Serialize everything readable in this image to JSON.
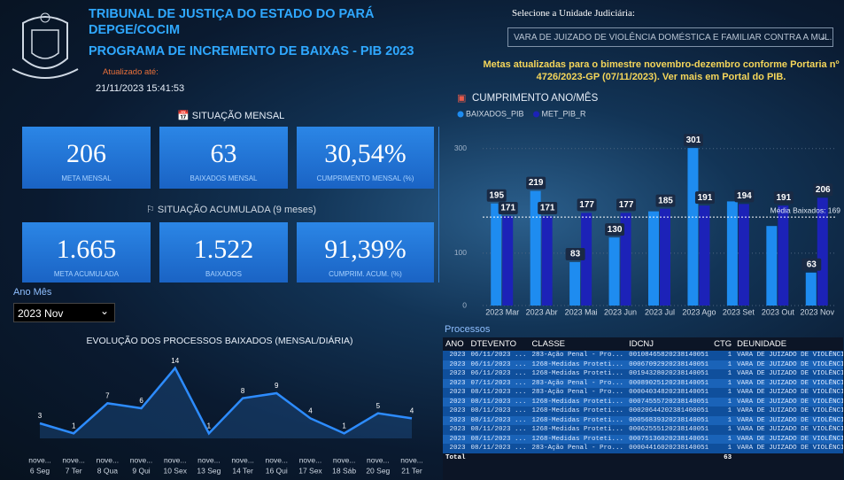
{
  "header": {
    "title": "TRIBUNAL DE JUSTIÇA DO ESTADO DO PARÁ",
    "subtitle": "DEPGE/COCIM",
    "program": "PROGRAMA DE INCREMENTO DE BAIXAS - PIB 2023",
    "updated_label": "Atualizado até:",
    "updated_at": "21/11/2023 15:41:53"
  },
  "unit_selector": {
    "label": "Selecione a Unidade Judiciária:",
    "value": "VARA DE JUIZADO DE VIOLÊNCIA DOMÉSTICA E FAMILIAR CONTRA A MUL..."
  },
  "notice": {
    "text": "Metas atualizadas para o bimestre novembro-dezembro conforme Portaria nº 4726/2023-GP (07/11/2023). Ver mais em ",
    "link": "Portal do PIB",
    "suffix": "."
  },
  "monthly": {
    "title": "SITUAÇÃO MENSAL",
    "cards": [
      {
        "value": "206",
        "label": "META MENSAL"
      },
      {
        "value": "63",
        "label": "BAIXADOS MENSAL"
      },
      {
        "value": "30,54%",
        "label": "CUMPRIMENTO MENSAL (%)"
      }
    ]
  },
  "accumulated": {
    "title": "SITUAÇÃO ACUMULADA (9 meses)",
    "cards": [
      {
        "value": "1.665",
        "label": "META ACUMULADA"
      },
      {
        "value": "1.522",
        "label": "BAIXADOS"
      },
      {
        "value": "91,39%",
        "label": "CUMPRIM. ACUM. (%)"
      }
    ]
  },
  "period_filter": {
    "label": "Ano Mês",
    "value": "2023 Nov"
  },
  "chart_data": [
    {
      "type": "bar",
      "title": "CUMPRIMENTO ANO/MÊS",
      "categories": [
        "2023 Mar",
        "2023 Abr",
        "2023 Mai",
        "2023 Jun",
        "2023 Jul",
        "2023 Ago",
        "2023 Set",
        "2023 Out",
        "2023 Nov"
      ],
      "series": [
        {
          "name": "BAIXADOS_PIB",
          "color": "#1e8cf0",
          "values": [
            195,
            219,
            83,
            130,
            180,
            301,
            199,
            152,
            63
          ],
          "value_labels": [
            "195",
            "219",
            "83",
            "130",
            null,
            "301",
            null,
            null,
            "63"
          ]
        },
        {
          "name": "MET_PIB_R",
          "color": "#1c22b8",
          "values": [
            171,
            171,
            177,
            177,
            185,
            191,
            194,
            191,
            206
          ],
          "value_labels": [
            "171",
            "171",
            "177",
            "177",
            "185",
            "191",
            "194",
            "191",
            "206"
          ]
        }
      ],
      "ylim": [
        0,
        330
      ],
      "yticks": [
        0,
        100,
        300
      ],
      "reference_line": {
        "label": "Média Baixados: 169",
        "value": 169
      }
    },
    {
      "type": "line",
      "title": "EVOLUÇÃO DOS PROCESSOS BAIXADOS (MENSAL/DIÁRIA)",
      "color": "#2d8cff",
      "categories": [
        [
          "nove...",
          "6 Seg"
        ],
        [
          "nove...",
          "7 Ter"
        ],
        [
          "nove...",
          "8 Qua"
        ],
        [
          "nove...",
          "9 Qui"
        ],
        [
          "nove...",
          "10 Sex"
        ],
        [
          "nove...",
          "13 Seg"
        ],
        [
          "nove...",
          "14 Ter"
        ],
        [
          "nove...",
          "16 Qui"
        ],
        [
          "nove...",
          "17 Sex"
        ],
        [
          "nove...",
          "18 Sáb"
        ],
        [
          "nove...",
          "20 Seg"
        ],
        [
          "nove...",
          "21 Ter"
        ]
      ],
      "values": [
        3,
        1,
        7,
        6,
        14,
        1,
        8,
        9,
        4,
        1,
        5,
        4
      ],
      "ylim": [
        0,
        15
      ]
    }
  ],
  "table": {
    "title": "Processos",
    "columns": [
      "ANO",
      "DTEVENTO",
      "CLASSE",
      "IDCNJ",
      "CTG",
      "DEUNIDADE"
    ],
    "rows": [
      [
        "2023",
        "06/11/2023 ...",
        "283-Ação Penal - Pro...",
        "00108465820238140051",
        "1",
        "VARA DE JUIZADO DE VIOLÊNCIA"
      ],
      [
        "2023",
        "06/11/2023 ...",
        "1268-Medidas Proteti...",
        "00067092920238140051",
        "1",
        "VARA DE JUIZADO DE VIOLÊNCIA"
      ],
      [
        "2023",
        "06/11/2023 ...",
        "1268-Medidas Proteti...",
        "00194328020238140051",
        "1",
        "VARA DE JUIZADO DE VIOLÊNCIA"
      ],
      [
        "2023",
        "07/11/2023 ...",
        "283-Ação Penal - Pro...",
        "00089025120238140051",
        "1",
        "VARA DE JUIZADO DE VIOLÊNCIA"
      ],
      [
        "2023",
        "08/11/2023 ...",
        "283-Ação Penal - Pro...",
        "00004034820238140051",
        "1",
        "VARA DE JUIZADO DE VIOLÊNCIA"
      ],
      [
        "2023",
        "08/11/2023 ...",
        "1268-Medidas Proteti...",
        "00074555720238140051",
        "1",
        "VARA DE JUIZADO DE VIOLÊNCIA"
      ],
      [
        "2023",
        "08/11/2023 ...",
        "1268-Medidas Proteti...",
        "00020644202381400051",
        "1",
        "VARA DE JUIZADO DE VIOLÊNCIA"
      ],
      [
        "2023",
        "08/11/2023 ...",
        "1268-Medidas Proteti...",
        "00056839320238140051",
        "1",
        "VARA DE JUIZADO DE VIOLÊNCIA"
      ],
      [
        "2023",
        "08/11/2023 ...",
        "1268-Medidas Proteti...",
        "00062555120238140051",
        "1",
        "VARA DE JUIZADO DE VIOLÊNCIA"
      ],
      [
        "2023",
        "08/11/2023 ...",
        "1268-Medidas Proteti...",
        "00075136020238140051",
        "1",
        "VARA DE JUIZADO DE VIOLÊNCIA"
      ],
      [
        "2023",
        "08/11/2023 ...",
        "283-Ação Penal - Pro...",
        "00004416020238140051",
        "1",
        "VARA DE JUIZADO DE VIOLÊNCIA"
      ]
    ],
    "total_label": "Total",
    "total": "63"
  }
}
